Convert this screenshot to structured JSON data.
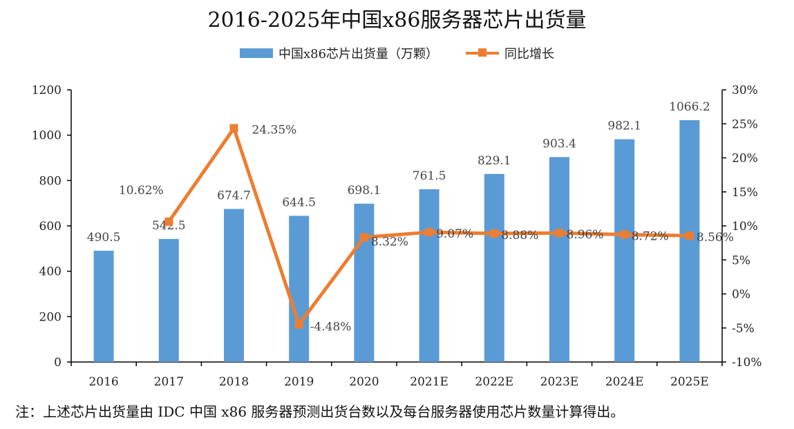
{
  "title": "2016-2025年中国x86服务器芯片出货量",
  "legend": {
    "bar_label": "中国x86芯片出货量（万颗）",
    "line_label": "同比增长"
  },
  "footnote": "注：上述芯片出货量由 IDC 中国 x86 服务器预测出货台数以及每台服务器使用芯片数量计算得出。",
  "colors": {
    "bar": "#5b9bd5",
    "line": "#ed7d31",
    "axis": "#000000"
  },
  "chart_data": {
    "type": "bar",
    "title": "2016-2025年中国x86服务器芯片出货量",
    "categories": [
      "2016",
      "2017",
      "2018",
      "2019",
      "2020",
      "2021E",
      "2022E",
      "2023E",
      "2024E",
      "2025E"
    ],
    "series": [
      {
        "name": "中国x86芯片出货量（万颗）",
        "type": "bar",
        "axis": "left",
        "values": [
          490.5,
          542.5,
          674.7,
          644.5,
          698.1,
          761.5,
          829.1,
          903.4,
          982.1,
          1066.2
        ],
        "labels": [
          "490.5",
          "542.5",
          "674.7",
          "644.5",
          "698.1",
          "761.5",
          "829.1",
          "903.4",
          "982.1",
          "1066.2"
        ]
      },
      {
        "name": "同比增长",
        "type": "line",
        "axis": "right",
        "values": [
          null,
          10.62,
          24.35,
          -4.48,
          8.32,
          9.07,
          8.88,
          8.96,
          8.72,
          8.56
        ],
        "labels": [
          "",
          "10.62%",
          "24.35%",
          "-4.48%",
          "8.32%",
          "9.07%",
          "8.88%",
          "8.96%",
          "8.72%",
          "8.56%"
        ]
      }
    ],
    "ylim_left": [
      0,
      1200
    ],
    "yticks_left": [
      "0",
      "200",
      "400",
      "600",
      "800",
      "1000",
      "1200"
    ],
    "ylim_right": [
      -10,
      30
    ],
    "yticks_right": [
      "-10%",
      "-5%",
      "0%",
      "5%",
      "10%",
      "15%",
      "20%",
      "25%",
      "30%"
    ],
    "grid": false,
    "legend_position": "top"
  }
}
